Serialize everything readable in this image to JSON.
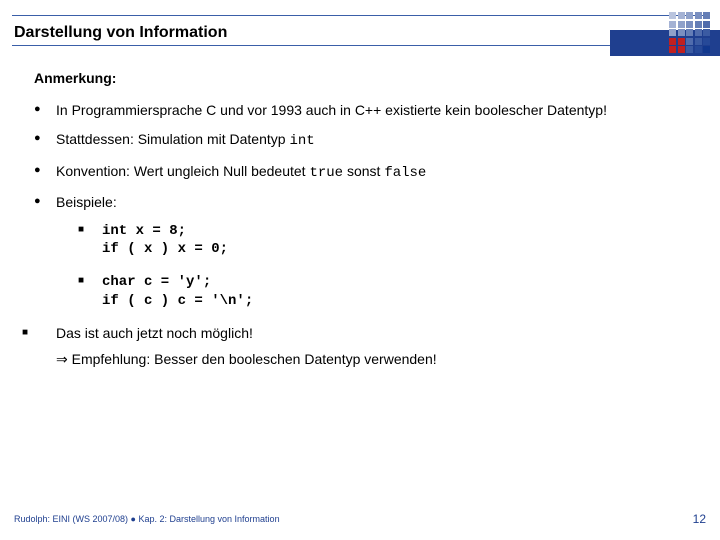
{
  "header": {
    "title": "Darstellung von Information",
    "accent_color": "#1f3f8f",
    "line_color": "#3a5ea8",
    "logo_colors": [
      "#b9c4de",
      "#a4b2d4",
      "#8fa1ca",
      "#7a8fc0",
      "#657eb6",
      "#a4b2d4",
      "#8fa1ca",
      "#7a8fc0",
      "#657eb6",
      "#506cac",
      "#8fa1ca",
      "#7a8fc0",
      "#657eb6",
      "#506cac",
      "#3b5ba2",
      "#c02020",
      "#c02020",
      "#506cac",
      "#3b5ba2",
      "#264998",
      "#c02020",
      "#c02020",
      "#3b5ba2",
      "#264998",
      "#11388e"
    ]
  },
  "content": {
    "subheading": "Anmerkung:",
    "bullets": [
      {
        "text": "In Programmiersprache C und vor 1993 auch in C++ existierte kein boolescher Datentyp!"
      },
      {
        "prefix": "Stattdessen: Simulation mit Datentyp ",
        "code": "int"
      },
      {
        "prefix": "Konvention: Wert ungleich Null bedeutet ",
        "code1": "true",
        "mid": " sonst ",
        "code2": "false"
      },
      {
        "text": "Beispiele:"
      }
    ],
    "examples": [
      "int x = 8;\nif ( x ) x = 0;",
      "char c = 'y';\nif ( c ) c = '\\n';"
    ],
    "last_block": {
      "line1": "Das ist auch jetzt noch möglich!",
      "arrow": "⇒",
      "line2": "Empfehlung: Besser den booleschen Datentyp verwenden!"
    }
  },
  "footer": {
    "left": "Rudolph: EINI (WS 2007/08)  ●  Kap. 2: Darstellung von Information",
    "page": "12"
  }
}
